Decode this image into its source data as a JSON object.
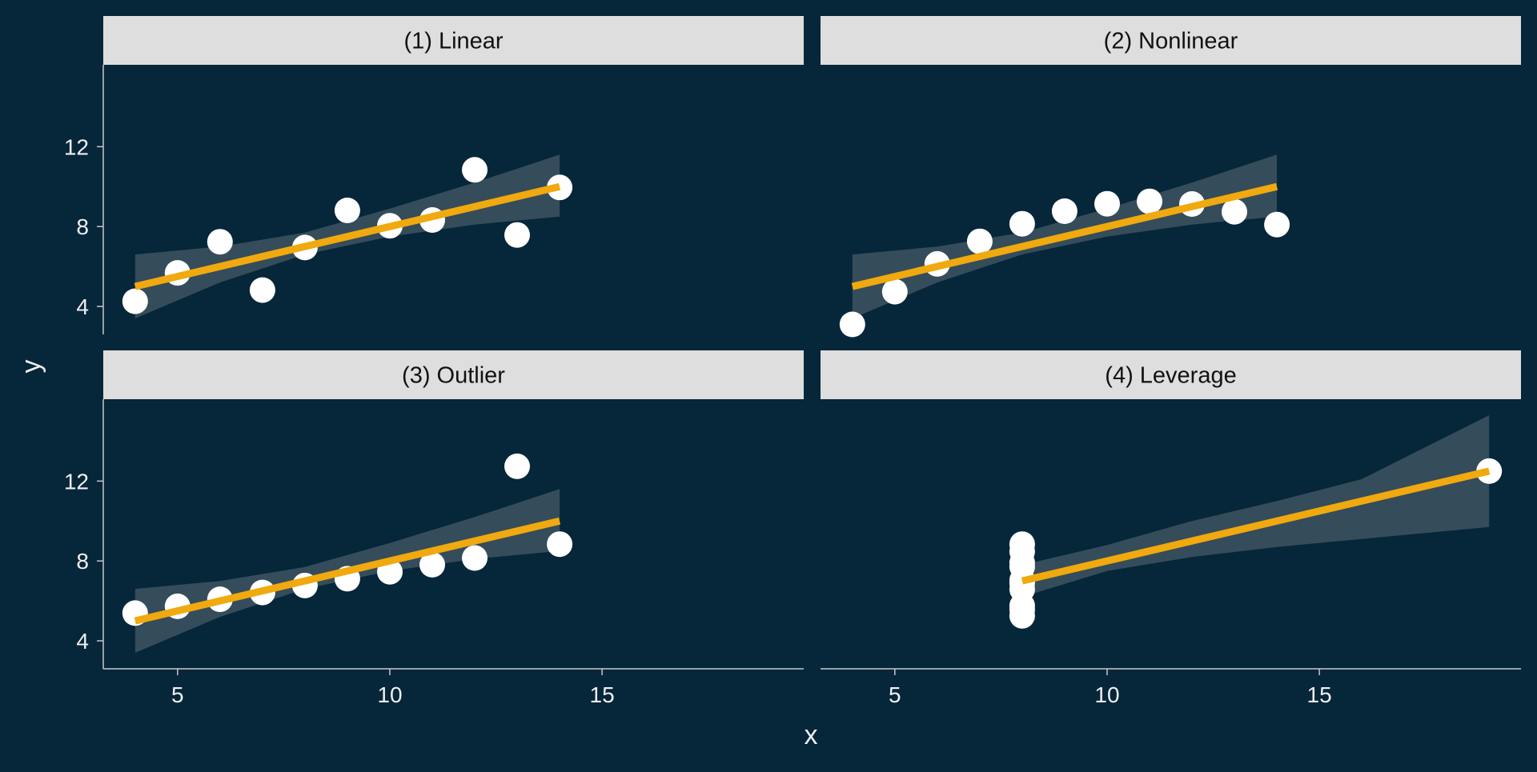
{
  "colors": {
    "background": "#06263a",
    "strip": "#dedede",
    "strip_text": "#111111",
    "axis": "#c8c8c8",
    "tick_text": "#f0f0f0",
    "point": "#ffffff",
    "fit_line": "#f0a90e",
    "ci_band": "#b0b0b0"
  },
  "chart_data": {
    "type": "scatter",
    "facet_layout": "2x2",
    "xlabel": "x",
    "ylabel": "y",
    "xlim": [
      3.25,
      19.75
    ],
    "ylim": [
      2.6,
      16.1
    ],
    "x_ticks": [
      5,
      10,
      15
    ],
    "y_ticks": [
      4,
      8,
      12
    ],
    "grid": false,
    "panels": [
      {
        "title": "(1) Linear",
        "x": [
          10,
          8,
          13,
          9,
          11,
          14,
          6,
          4,
          12,
          7,
          5
        ],
        "y": [
          8.04,
          6.95,
          7.58,
          8.81,
          8.33,
          9.96,
          7.24,
          4.26,
          10.84,
          4.82,
          5.68
        ],
        "fit": {
          "x": [
            4,
            14
          ],
          "y": [
            5.0,
            10.0
          ]
        },
        "ci_band": {
          "x": [
            4,
            6,
            8,
            10,
            12,
            14
          ],
          "lower": [
            3.4,
            5.2,
            6.6,
            7.5,
            8.1,
            8.5
          ],
          "upper": [
            6.6,
            7.0,
            7.7,
            8.9,
            10.2,
            11.6
          ]
        }
      },
      {
        "title": "(2) Nonlinear",
        "x": [
          10,
          8,
          13,
          9,
          11,
          14,
          6,
          4,
          12,
          7,
          5
        ],
        "y": [
          9.14,
          8.14,
          8.74,
          8.77,
          9.26,
          8.1,
          6.13,
          3.1,
          9.13,
          7.26,
          4.74
        ],
        "fit": {
          "x": [
            4,
            14
          ],
          "y": [
            5.0,
            10.0
          ]
        },
        "ci_band": {
          "x": [
            4,
            6,
            8,
            10,
            12,
            14
          ],
          "lower": [
            3.4,
            5.2,
            6.6,
            7.5,
            8.1,
            8.5
          ],
          "upper": [
            6.6,
            7.0,
            7.7,
            8.9,
            10.2,
            11.6
          ]
        }
      },
      {
        "title": "(3) Outlier",
        "x": [
          10,
          8,
          13,
          9,
          11,
          14,
          6,
          4,
          12,
          7,
          5
        ],
        "y": [
          7.46,
          6.77,
          12.74,
          7.11,
          7.81,
          8.84,
          6.08,
          5.39,
          8.15,
          6.42,
          5.73
        ],
        "fit": {
          "x": [
            4,
            14
          ],
          "y": [
            5.0,
            10.0
          ]
        },
        "ci_band": {
          "x": [
            4,
            6,
            8,
            10,
            12,
            14
          ],
          "lower": [
            3.4,
            5.2,
            6.6,
            7.5,
            8.1,
            8.5
          ],
          "upper": [
            6.6,
            7.0,
            7.7,
            8.9,
            10.2,
            11.6
          ]
        }
      },
      {
        "title": "(4) Leverage",
        "x": [
          8,
          8,
          8,
          8,
          8,
          8,
          8,
          19,
          8,
          8,
          8
        ],
        "y": [
          6.58,
          5.76,
          7.71,
          8.84,
          8.47,
          7.04,
          5.25,
          12.5,
          5.56,
          7.91,
          6.89
        ],
        "fit": {
          "x": [
            8,
            19
          ],
          "y": [
            7.0,
            12.5
          ]
        },
        "ci_band": {
          "x": [
            8,
            10,
            12,
            14,
            16,
            19
          ],
          "lower": [
            6.2,
            7.5,
            8.2,
            8.7,
            9.1,
            9.7
          ],
          "upper": [
            7.8,
            8.8,
            10.0,
            11.0,
            12.1,
            15.3
          ]
        }
      }
    ]
  }
}
